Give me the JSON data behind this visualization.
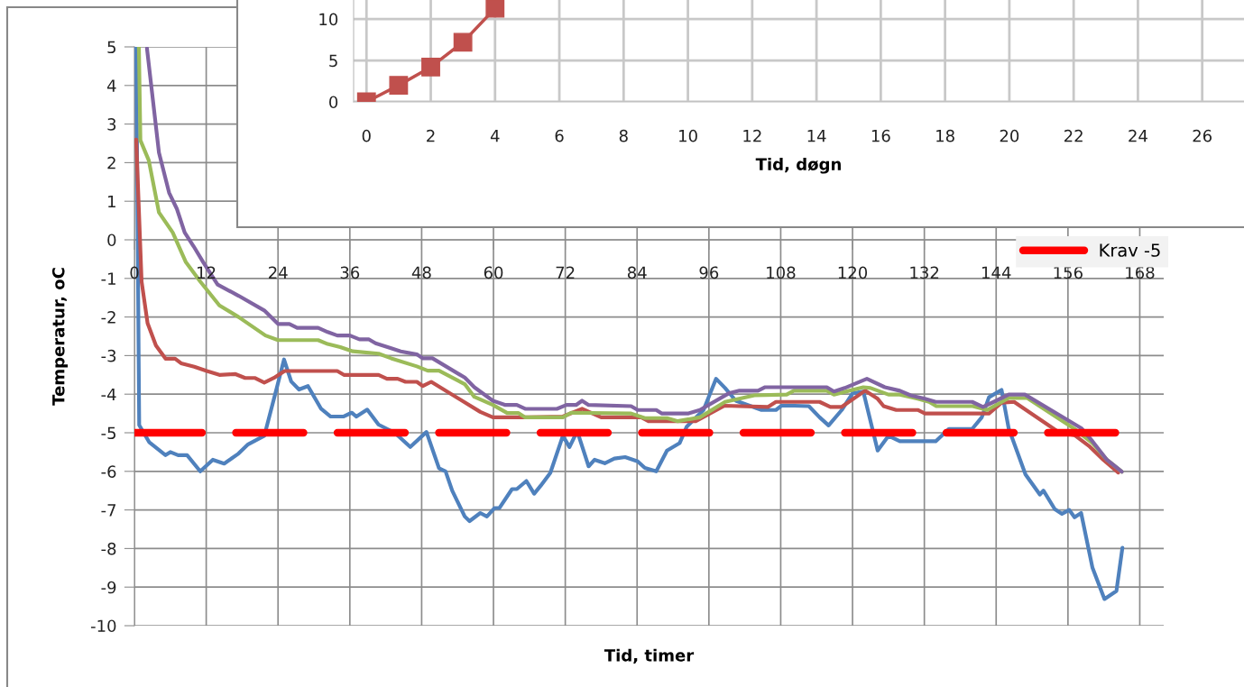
{
  "chart_data": [
    {
      "type": "line",
      "xlabel": "Tid, timer",
      "ylabel": "Temperatur, oC",
      "xlim": [
        0,
        172
      ],
      "ylim": [
        -10,
        5
      ],
      "xticks": [
        0,
        12,
        24,
        36,
        48,
        60,
        72,
        84,
        96,
        108,
        120,
        132,
        144,
        156,
        168
      ],
      "yticks": [
        -10,
        -9,
        -8,
        -7,
        -6,
        -5,
        -4,
        -3,
        -2,
        -1,
        0,
        1,
        2,
        3,
        4,
        5
      ],
      "grid": true,
      "legend": "top right",
      "series": [
        {
          "color": "#4f81bd",
          "x": [
            0.3,
            0.8,
            2.5,
            5.2,
            6,
            7.3,
            8.8,
            11,
            13.1,
            15,
            17.4,
            19,
            21.7,
            23.8,
            25,
            26.2,
            27.5,
            29,
            31.2,
            32.8,
            34.9,
            36.3,
            37.1,
            38.9,
            40.8,
            43.5,
            46.1,
            48.8,
            50.9,
            52,
            53.1,
            55.2,
            56,
            57.8,
            58.9,
            60.2,
            61,
            63.1,
            63.9,
            65.5,
            66.8,
            67.9,
            69.5,
            71.6,
            72.7,
            74,
            75.9,
            76.9,
            78.6,
            80.2,
            82,
            84.1,
            85.3,
            87.2,
            89,
            91.1,
            92.3,
            95.1,
            97.2,
            98.7,
            100.5,
            104.8,
            107.2,
            108.1,
            110.3,
            112.7,
            114.5,
            116,
            118.2,
            120,
            121.8,
            124.2,
            126,
            127.9,
            133.9,
            136.1,
            140,
            141.6,
            142.8,
            144.9,
            146.1,
            148.9,
            151.3,
            151.9,
            153.8,
            155,
            156.2,
            157.1,
            158.2,
            160.1,
            162.1,
            164.1,
            165.1
          ],
          "values": [
            5,
            -4.8,
            -5.25,
            -5.58,
            -5.5,
            -5.58,
            -5.58,
            -6.0,
            -5.7,
            -5.8,
            -5.54,
            -5.3,
            -5.08,
            -3.83,
            -3.1,
            -3.67,
            -3.88,
            -3.79,
            -4.38,
            -4.58,
            -4.58,
            -4.48,
            -4.58,
            -4.4,
            -4.79,
            -5.0,
            -5.37,
            -4.98,
            -5.92,
            -6.0,
            -6.5,
            -7.17,
            -7.29,
            -7.08,
            -7.17,
            -6.95,
            -6.95,
            -6.46,
            -6.46,
            -6.25,
            -6.58,
            -6.37,
            -6.04,
            -5.08,
            -5.37,
            -4.96,
            -5.87,
            -5.7,
            -5.79,
            -5.67,
            -5.63,
            -5.74,
            -5.91,
            -6.0,
            -5.46,
            -5.27,
            -4.84,
            -4.41,
            -3.6,
            -3.84,
            -4.17,
            -4.41,
            -4.41,
            -4.3,
            -4.3,
            -4.31,
            -4.6,
            -4.81,
            -4.41,
            -3.98,
            -3.93,
            -5.46,
            -5.08,
            -5.22,
            -5.22,
            -4.9,
            -4.9,
            -4.6,
            -4.08,
            -3.89,
            -4.89,
            -6.08,
            -6.6,
            -6.5,
            -6.98,
            -7.1,
            -7.0,
            -7.19,
            -7.08,
            -8.5,
            -9.31,
            -9.1,
            -7.98
          ]
        },
        {
          "color": "#c0504d",
          "x": [
            0.3,
            1.2,
            2.2,
            3.6,
            5.2,
            6.8,
            7.8,
            10,
            12.1,
            14.2,
            16.9,
            18.5,
            20.1,
            21.7,
            23.3,
            25.1,
            33.9,
            35,
            40.8,
            42.2,
            44,
            45.3,
            47.2,
            48.2,
            49.6,
            57.8,
            59.9,
            65.8,
            71.6,
            74.8,
            78,
            84.7,
            85.9,
            93.8,
            98.6,
            105.9,
            107.2,
            114.5,
            116.3,
            118.2,
            122.1,
            124.2,
            125.2,
            127.3,
            130.9,
            132.1,
            142.8,
            144.9,
            147,
            154.6,
            157.1,
            159.5,
            161.9,
            164.4
          ],
          "values": [
            2.6,
            -1.08,
            -2.16,
            -2.74,
            -3.08,
            -3.08,
            -3.2,
            -3.29,
            -3.4,
            -3.5,
            -3.48,
            -3.58,
            -3.58,
            -3.7,
            -3.58,
            -3.4,
            -3.4,
            -3.5,
            -3.5,
            -3.6,
            -3.6,
            -3.68,
            -3.68,
            -3.79,
            -3.68,
            -4.46,
            -4.6,
            -4.6,
            -4.58,
            -4.38,
            -4.6,
            -4.6,
            -4.7,
            -4.7,
            -4.3,
            -4.33,
            -4.2,
            -4.2,
            -4.33,
            -4.33,
            -3.91,
            -4.12,
            -4.31,
            -4.41,
            -4.41,
            -4.5,
            -4.5,
            -4.22,
            -4.2,
            -5.0,
            -5.06,
            -5.34,
            -5.7,
            -6.03
          ]
        },
        {
          "color": "#9bbb59",
          "x": [
            0.75,
            1,
            2.4,
            4.1,
            6.4,
            8.6,
            11,
            14.2,
            17.4,
            21.9,
            24,
            30.7,
            32.3,
            34.4,
            36.5,
            40.8,
            42.9,
            47.2,
            49,
            50.9,
            55.2,
            56.8,
            59.9,
            62.3,
            64.2,
            65.3,
            71.6,
            73,
            83,
            85.3,
            89,
            90.8,
            94.5,
            98.7,
            103.6,
            109,
            110.2,
            115.7,
            116.9,
            121.8,
            123,
            126,
            127.9,
            130.9,
            132.8,
            134,
            140.1,
            142.5,
            146.1,
            149.2,
            157.1,
            160.1,
            162.5,
            165
          ],
          "values": [
            5,
            2.58,
            2.06,
            0.71,
            0.19,
            -0.58,
            -1.08,
            -1.7,
            -2.0,
            -2.48,
            -2.6,
            -2.6,
            -2.7,
            -2.78,
            -2.89,
            -2.95,
            -3.07,
            -3.28,
            -3.39,
            -3.39,
            -3.74,
            -4.07,
            -4.28,
            -4.49,
            -4.49,
            -4.6,
            -4.6,
            -4.48,
            -4.5,
            -4.62,
            -4.62,
            -4.7,
            -4.6,
            -4.2,
            -4.03,
            -4.01,
            -3.91,
            -3.91,
            -4.01,
            -3.82,
            -3.84,
            -4.01,
            -4.01,
            -4.12,
            -4.2,
            -4.31,
            -4.31,
            -4.41,
            -4.1,
            -4.1,
            -4.9,
            -5.27,
            -5.7,
            -6.01
          ]
        },
        {
          "color": "#8064a2",
          "x": [
            2.1,
            3.1,
            4.1,
            5.8,
            7.1,
            8.4,
            9.9,
            11.5,
            13.9,
            17.4,
            21.7,
            24,
            25.9,
            27.2,
            30.7,
            32.3,
            33.9,
            36,
            37.6,
            39.2,
            40.3,
            42.9,
            44.5,
            47.2,
            48.2,
            49.8,
            55.2,
            56.8,
            59.9,
            62,
            63.9,
            65.3,
            70.6,
            72.2,
            73.8,
            74.8,
            75.9,
            83,
            84.1,
            87.2,
            88.1,
            92.6,
            94.5,
            99.3,
            101.1,
            104.2,
            105.4,
            115.7,
            116.9,
            118.7,
            122.4,
            125.4,
            127.9,
            129.7,
            132.1,
            133.9,
            140,
            141.8,
            143.6,
            146.1,
            148.8,
            158.3,
            160.1,
            162.5,
            165
          ],
          "values": [
            4.96,
            3.61,
            2.26,
            1.22,
            0.8,
            0.19,
            -0.17,
            -0.58,
            -1.16,
            -1.45,
            -1.83,
            -2.18,
            -2.18,
            -2.28,
            -2.28,
            -2.39,
            -2.48,
            -2.48,
            -2.58,
            -2.58,
            -2.68,
            -2.81,
            -2.89,
            -2.97,
            -3.07,
            -3.07,
            -3.57,
            -3.82,
            -4.17,
            -4.28,
            -4.28,
            -4.38,
            -4.38,
            -4.28,
            -4.28,
            -4.17,
            -4.28,
            -4.31,
            -4.41,
            -4.41,
            -4.5,
            -4.5,
            -4.41,
            -3.98,
            -3.91,
            -3.91,
            -3.82,
            -3.82,
            -3.93,
            -3.84,
            -3.6,
            -3.82,
            -3.91,
            -4.03,
            -4.12,
            -4.2,
            -4.2,
            -4.33,
            -4.2,
            -4.01,
            -4.01,
            -4.89,
            -5.22,
            -5.7,
            -6.01
          ]
        },
        {
          "name": "Krav -5",
          "color": "#ff0000",
          "line_style": "dashed",
          "x": [
            0,
            165
          ],
          "values": [
            -5,
            -5
          ]
        }
      ]
    },
    {
      "type": "line",
      "xlabel": "Tid, døgn",
      "marker": "square",
      "xlim": [
        -0.4,
        27.3
      ],
      "ylim": [
        0,
        12.3
      ],
      "xticks": [
        0,
        2,
        4,
        6,
        8,
        10,
        12,
        14,
        16,
        18,
        20,
        22,
        24,
        26
      ],
      "yticks": [
        0,
        5,
        10
      ],
      "grid": true,
      "series": [
        {
          "color": "#c0504d",
          "x": [
            0,
            1,
            2,
            3,
            4
          ],
          "values": [
            0,
            2,
            4.2,
            7.2,
            11.3
          ]
        }
      ]
    }
  ]
}
